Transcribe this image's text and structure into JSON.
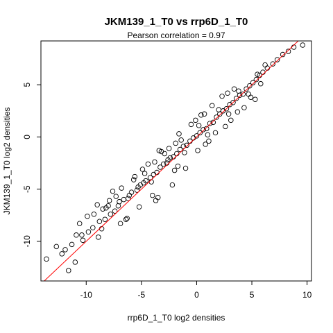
{
  "chart_data": {
    "type": "scatter",
    "title": "JKM139_1_T0 vs rrp6D_1_T0",
    "subtitle": "Pearson correlation =  0.97",
    "xlabel": "rrp6D_1_T0 log2 densities",
    "ylabel": "JKM139_1_T0 log2 densities",
    "xlim": [
      -14.1,
      10.4
    ],
    "ylim": [
      -13.8,
      9.2
    ],
    "xticks": [
      -10,
      -5,
      0,
      5,
      10
    ],
    "yticks": [
      -10,
      -5,
      0,
      5
    ],
    "grid": false,
    "reference_line": {
      "slope": 1,
      "intercept": 0,
      "color": "#ff0000"
    },
    "marker": {
      "shape": "open-circle",
      "color": "#000000"
    },
    "series": [
      {
        "x": [
          -13.6,
          -12.2,
          -12.7,
          -11.9,
          -11.3,
          -10.9,
          -11.6,
          -10.3,
          -9.8,
          -10.6,
          -9.4,
          -8.8,
          -9.9,
          -8.3,
          -8.9,
          -7.8,
          -8.2,
          -7.4,
          -9.0,
          -8.6,
          -7.9,
          -7.1,
          -6.6,
          -7.3,
          -6.2,
          -5.9,
          -6.8,
          -5.4,
          -5.1,
          -4.8,
          -6.1,
          -5.6,
          -4.6,
          -4.2,
          -3.9,
          -5.3,
          -4.9,
          -3.6,
          -3.3,
          -3.0,
          -4.1,
          -3.8,
          -2.7,
          -2.4,
          -2.1,
          -3.4,
          -1.8,
          -1.5,
          -1.2,
          -2.6,
          -0.9,
          -0.6,
          -0.3,
          -1.9,
          0.0,
          0.3,
          0.6,
          -1.1,
          0.9,
          1.2,
          1.5,
          0.2,
          1.8,
          2.1,
          2.4,
          1.0,
          2.7,
          3.0,
          3.3,
          2.0,
          3.6,
          3.9,
          4.2,
          2.9,
          4.5,
          4.8,
          5.1,
          3.8,
          5.4,
          5.7,
          6.0,
          4.7,
          6.4,
          6.9,
          7.3,
          5.8,
          7.8,
          8.3,
          8.8,
          9.6,
          6.2,
          5.3,
          -5.2,
          -3.5,
          -2.2,
          -1.0,
          0.8,
          2.3,
          -6.4,
          -7.0,
          -4.4,
          -3.2,
          -1.6,
          0.4,
          1.7,
          3.1,
          4.3,
          -8.0,
          -6.9,
          -2.9,
          -0.5,
          1.4,
          -9.3,
          -10.4,
          -5.7,
          -4.0,
          -2.0,
          -0.1,
          2.6,
          4.9,
          -7.6,
          -3.7,
          -1.4,
          1.1,
          3.4,
          -11.0,
          -8.5,
          -6.3,
          -2.5,
          0.1,
          2.8,
          5.5,
          -4.7,
          -1.7,
          0.7,
          3.7
        ],
        "y": [
          -11.7,
          -11.2,
          -10.5,
          -10.8,
          -10.3,
          -9.4,
          -12.8,
          -9.9,
          -9.1,
          -8.3,
          -8.7,
          -8.1,
          -7.6,
          -7.9,
          -9.6,
          -7.4,
          -6.8,
          -7.1,
          -6.5,
          -8.8,
          -6.1,
          -6.6,
          -6.0,
          -5.7,
          -5.9,
          -5.3,
          -4.9,
          -5.1,
          -4.6,
          -4.4,
          -5.6,
          -3.8,
          -4.2,
          -3.9,
          -3.6,
          -4.8,
          -3.1,
          -3.4,
          -2.9,
          -2.6,
          -4.3,
          -2.4,
          -2.5,
          -2.0,
          -1.9,
          -1.3,
          -1.6,
          -1.2,
          -0.9,
          -2.2,
          -0.8,
          -0.4,
          -0.1,
          -0.6,
          0.1,
          0.4,
          0.7,
          -1.5,
          0.8,
          1.3,
          1.4,
          1.1,
          1.9,
          2.2,
          2.5,
          0.2,
          2.7,
          3.1,
          3.3,
          2.6,
          3.7,
          4.0,
          4.1,
          2.2,
          4.6,
          4.9,
          5.2,
          4.4,
          5.5,
          5.9,
          6.2,
          4.1,
          6.6,
          7.0,
          7.4,
          5.1,
          7.9,
          8.2,
          8.6,
          8.8,
          6.9,
          3.6,
          -6.7,
          -5.8,
          -4.6,
          -3.0,
          -0.7,
          3.9,
          -7.9,
          -6.2,
          -2.6,
          -1.4,
          0.3,
          2.1,
          0.4,
          1.6,
          2.8,
          -6.6,
          -8.3,
          -1.6,
          1.2,
          3.0,
          -7.4,
          -9.4,
          -4.1,
          -5.6,
          -3.2,
          1.6,
          1.0,
          3.8,
          -5.2,
          -6.1,
          -0.3,
          -0.4,
          4.6,
          -12.0,
          -6.9,
          -7.8,
          -1.1,
          -1.3,
          4.2,
          6.0,
          -3.5,
          -2.8,
          2.2,
          2.4
        ]
      }
    ]
  }
}
